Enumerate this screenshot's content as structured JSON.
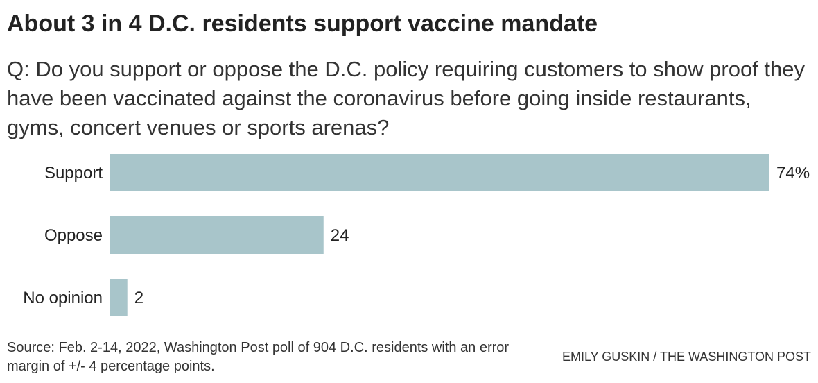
{
  "header": {
    "title": "About 3 in 4 D.C. residents support vaccine mandate",
    "question": "Q: Do you support or oppose the D.C. policy requiring customers to show proof they have been vaccinated against the coronavirus before going inside restaurants, gyms, concert venues or sports arenas?"
  },
  "footer": {
    "source": "Source: Feb. 2-14, 2022, Washington Post poll of 904 D.C. residents with an error margin of +/- 4 percentage points.",
    "credit": "EMILY GUSKIN / THE WASHINGTON POST"
  },
  "chart_data": {
    "type": "bar",
    "orientation": "horizontal",
    "categories": [
      "Support",
      "Oppose",
      "No opinion"
    ],
    "values": [
      74,
      24,
      2
    ],
    "value_labels": [
      "74%",
      "24",
      "2"
    ],
    "xlim": [
      0,
      74
    ],
    "unit": "%",
    "grid": false,
    "bar_color": "#a8c5ca"
  }
}
